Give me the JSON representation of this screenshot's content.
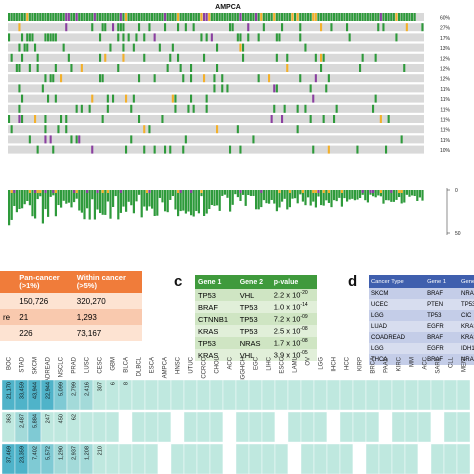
{
  "oncoprint": {
    "title": "AMPCA",
    "row_percentages": [
      "60%",
      "27%",
      "17%",
      "13%",
      "12%",
      "12%",
      "12%",
      "11%",
      "11%",
      "11%",
      "11%",
      "11%",
      "11%",
      "10%"
    ],
    "bar_axis_ticks": [
      "0",
      "50"
    ],
    "colors": {
      "green": "#2e9a3b",
      "orange": "#f3b02a",
      "purple": "#8a3fa0",
      "gray": "#d9d9d9"
    }
  },
  "panel_b": {
    "letter": "b",
    "headers": [
      "",
      "Pan-cancer\n(>1%)",
      "Within cancer\n(>5%)"
    ],
    "rows": [
      [
        "",
        "150,726",
        "320,270"
      ],
      [
        "re",
        "21",
        "1,293"
      ],
      [
        "",
        "226",
        "73,167"
      ]
    ]
  },
  "panel_c": {
    "letter": "c",
    "headers": [
      "Gene 1",
      "Gene 2",
      "p-value"
    ],
    "rows": [
      [
        "TP53",
        "VHL",
        "2.2 x 10",
        "-20"
      ],
      [
        "BRAF",
        "TP53",
        "1.0 x 10",
        "-14"
      ],
      [
        "CTNNB1",
        "TP53",
        "7.2 x 10",
        "-09"
      ],
      [
        "KRAS",
        "TP53",
        "2.5 x 10",
        "-08"
      ],
      [
        "TP53",
        "NRAS",
        "1.7 x 10",
        "-08"
      ],
      [
        "KRAS",
        "VHL",
        "3.9 x 10",
        "-05"
      ]
    ]
  },
  "panel_d": {
    "letter": "d",
    "headers": [
      "Cancer Type",
      "Gene 1",
      "Gene 2"
    ],
    "rows": [
      [
        "SKCM",
        "BRAF",
        "NRAS"
      ],
      [
        "UCEC",
        "PTEN",
        "TP53"
      ],
      [
        "LGG",
        "TP53",
        "CIC"
      ],
      [
        "LUAD",
        "EGFR",
        "KRAS"
      ],
      [
        "COADREAD",
        "BRAF",
        "KRAS"
      ],
      [
        "LGG",
        "EGFR",
        "IDH1"
      ],
      [
        "THCA",
        "BRAF",
        "NRAS"
      ]
    ]
  },
  "heatmap": {
    "columns": [
      "BOC",
      "STAD",
      "SKCM",
      "COADREAD",
      "NSCLC",
      "PRAD",
      "LUSC",
      "CESC",
      "GBM",
      "BLCA",
      "DLBCL",
      "ESCA",
      "AMPCA",
      "HNSC",
      "UTUC",
      "CCRCC",
      "CHOL",
      "ACC",
      "HGGHCH",
      "EGC",
      "LIHC",
      "ESCC",
      "LAML",
      "OV",
      "LGG",
      "IHCH",
      "HCC",
      "KIRP",
      "BRCA",
      "PAAD",
      "KIRC",
      "MM",
      "ACC",
      "SARC",
      "CLL",
      "MENI"
    ],
    "row1": [
      "21,170",
      "33,459",
      "43,944",
      "22,944",
      "5,099",
      "2,799",
      "2,416",
      "307",
      "6",
      "8",
      "",
      "",
      "",
      "",
      "",
      "",
      "",
      "",
      "",
      "",
      "",
      "",
      "",
      "",
      "",
      "",
      "",
      "",
      "",
      "",
      "",
      "",
      "",
      "",
      "",
      ""
    ],
    "row2": [
      "363",
      "2,487",
      "5,884",
      "247",
      "450",
      "62",
      "",
      "",
      "",
      "",
      "",
      "",
      "",
      "",
      "",
      "",
      "",
      "",
      "",
      "",
      "",
      "",
      "",
      "",
      "",
      "",
      "",
      "",
      "",
      "",
      "",
      "",
      "",
      "",
      "",
      ""
    ],
    "row3": [
      "37,469",
      "23,359",
      "7,402",
      "5,572",
      "1,290",
      "2,937",
      "1,208",
      "210",
      "",
      "",
      "",
      "",
      "",
      "",
      "",
      "",
      "",
      "",
      "",
      "",
      "",
      "",
      "",
      "",
      "",
      "",
      "",
      "",
      "",
      "",
      "",
      "",
      "",
      "",
      "",
      ""
    ]
  }
}
